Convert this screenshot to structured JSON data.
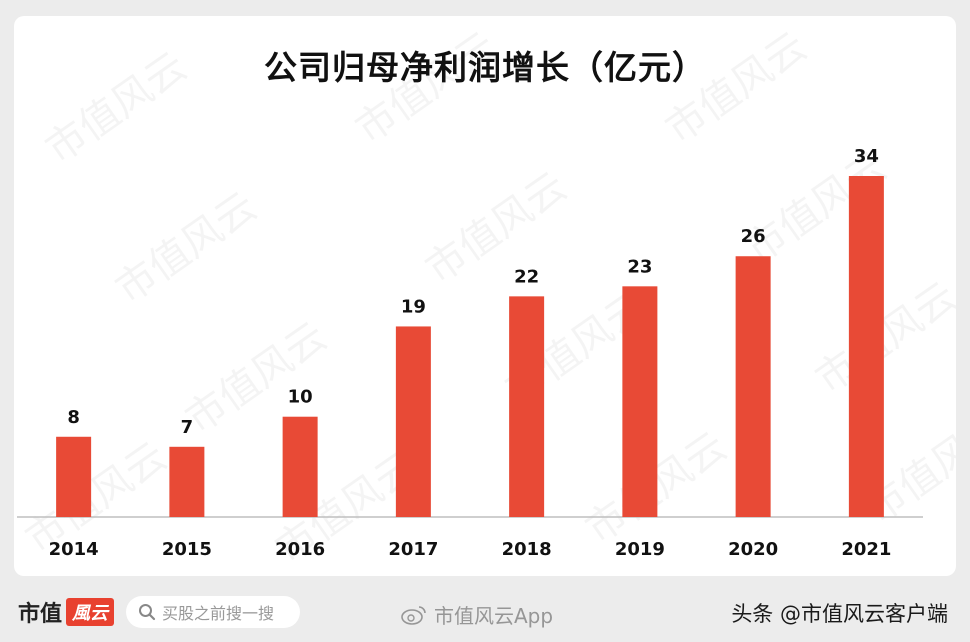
{
  "chart_data": {
    "type": "bar",
    "title": "公司归母净利润增长（亿元）",
    "categories": [
      "2014",
      "2015",
      "2016",
      "2017",
      "2018",
      "2019",
      "2020",
      "2021"
    ],
    "values": [
      8,
      7,
      10,
      19,
      22,
      23,
      26,
      34
    ],
    "bar_color": "#e84a36",
    "axis_color": "#bfbfbf",
    "ylim": [
      0,
      34
    ],
    "grid": false,
    "legend": "none"
  },
  "watermark_text": "市值风云",
  "footer": {
    "logo_text": "市值",
    "logo_mark": "風云",
    "search_placeholder": "买股之前搜一搜",
    "app_label": "市值风云App",
    "credit": "头条 @市值风云客户端"
  }
}
